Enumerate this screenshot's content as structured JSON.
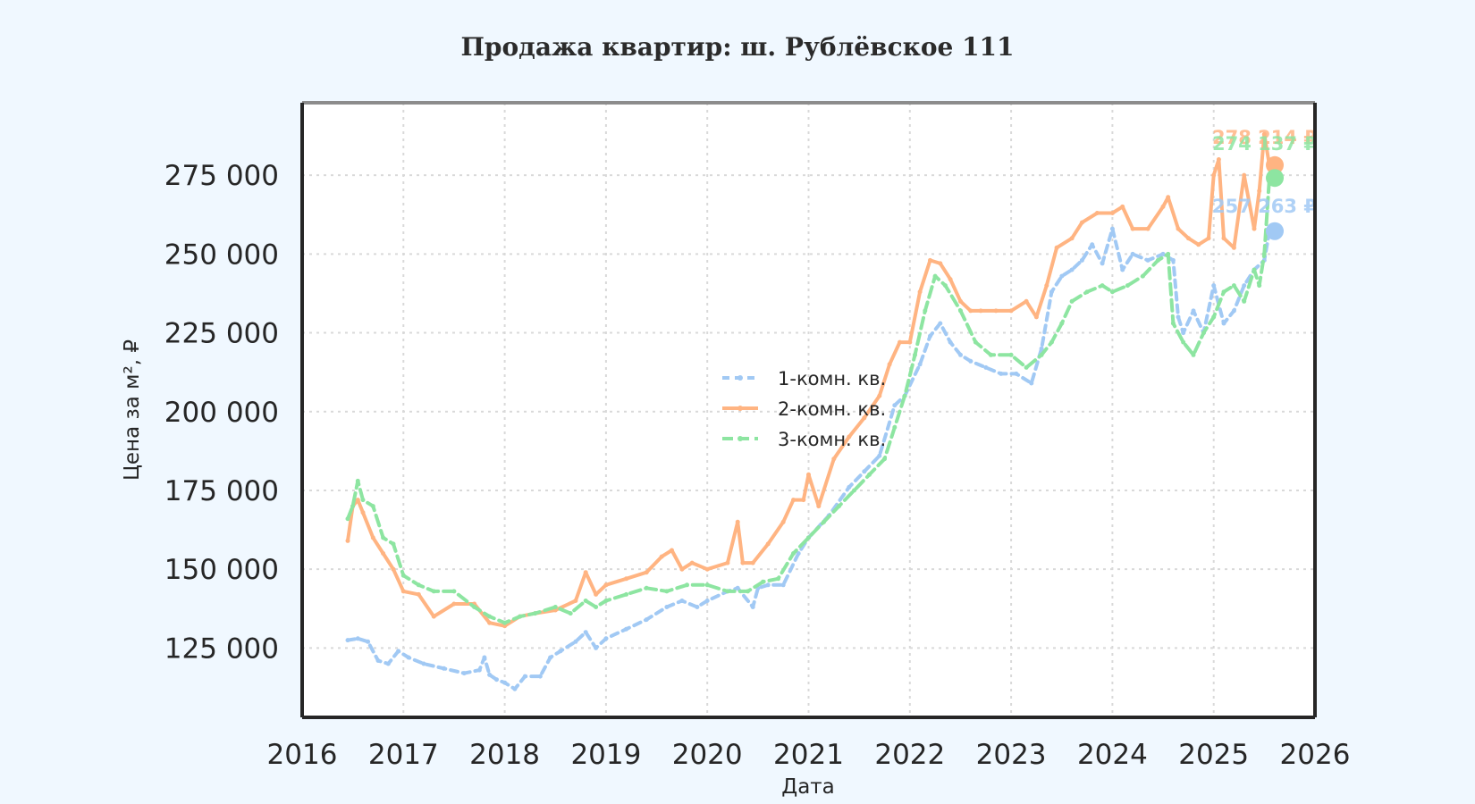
{
  "chart_data": {
    "type": "line",
    "title": "Продажа квартир: ш. Рублёвское 111",
    "xlabel": "Дата",
    "ylabel": "Цена за м², ₽",
    "xlim": [
      2016,
      2026
    ],
    "ylim": [
      103000,
      298000
    ],
    "x_ticks": [
      "2016",
      "2017",
      "2018",
      "2019",
      "2020",
      "2021",
      "2022",
      "2023",
      "2024",
      "2025",
      "2026"
    ],
    "y_ticks": [
      "125 000",
      "150 000",
      "175 000",
      "200 000",
      "225 000",
      "250 000",
      "275 000"
    ],
    "y_tick_values": [
      125000,
      150000,
      175000,
      200000,
      225000,
      250000,
      275000
    ],
    "grid": true,
    "legend_position": "center",
    "series": [
      {
        "name": "1-комн. кв.",
        "color": "#a1c9f4",
        "dash": "8 6",
        "x": [
          2016.45,
          2016.55,
          2016.65,
          2016.75,
          2016.85,
          2016.95,
          2017.05,
          2017.2,
          2017.4,
          2017.6,
          2017.75,
          2017.8,
          2017.85,
          2017.92,
          2018.0,
          2018.1,
          2018.2,
          2018.35,
          2018.45,
          2018.55,
          2018.7,
          2018.8,
          2018.9,
          2019.0,
          2019.2,
          2019.4,
          2019.6,
          2019.75,
          2019.9,
          2020.0,
          2020.2,
          2020.3,
          2020.45,
          2020.5,
          2020.6,
          2020.75,
          2020.9,
          2021.0,
          2021.2,
          2021.4,
          2021.55,
          2021.7,
          2021.85,
          2021.95,
          2022.1,
          2022.2,
          2022.3,
          2022.4,
          2022.5,
          2022.6,
          2022.75,
          2022.9,
          2023.05,
          2023.2,
          2023.3,
          2023.4,
          2023.5,
          2023.6,
          2023.7,
          2023.8,
          2023.9,
          2024.0,
          2024.1,
          2024.2,
          2024.35,
          2024.5,
          2024.6,
          2024.65,
          2024.7,
          2024.8,
          2024.9,
          2025.0,
          2025.1,
          2025.2,
          2025.3,
          2025.4,
          2025.5,
          2025.55
        ],
        "y": [
          127500,
          128000,
          127000,
          121000,
          120000,
          124000,
          122000,
          120000,
          118500,
          117000,
          118000,
          122000,
          116500,
          115000,
          114000,
          112000,
          116000,
          116000,
          122000,
          124000,
          127000,
          130000,
          125000,
          128000,
          131000,
          134000,
          138000,
          140000,
          138000,
          140000,
          143000,
          144000,
          138000,
          144000,
          145000,
          145000,
          155000,
          160000,
          167000,
          176000,
          181000,
          186000,
          202000,
          205000,
          215000,
          224000,
          228000,
          222000,
          218000,
          216000,
          214000,
          212000,
          212000,
          209000,
          220000,
          238000,
          243000,
          245000,
          248000,
          253000,
          247000,
          258000,
          245000,
          250000,
          248000,
          250000,
          248000,
          230000,
          225000,
          232000,
          225000,
          240000,
          228000,
          232000,
          240000,
          245000,
          248000,
          257263
        ]
      },
      {
        "name": "2-комн. кв.",
        "color": "#ffb482",
        "dash": "",
        "x": [
          2016.45,
          2016.5,
          2016.55,
          2016.6,
          2016.7,
          2016.8,
          2016.9,
          2017.0,
          2017.15,
          2017.3,
          2017.5,
          2017.7,
          2017.85,
          2018.0,
          2018.15,
          2018.3,
          2018.5,
          2018.7,
          2018.8,
          2018.9,
          2019.0,
          2019.2,
          2019.4,
          2019.55,
          2019.65,
          2019.75,
          2019.85,
          2020.0,
          2020.2,
          2020.3,
          2020.35,
          2020.45,
          2020.6,
          2020.75,
          2020.85,
          2020.95,
          2021.0,
          2021.1,
          2021.25,
          2021.4,
          2021.55,
          2021.7,
          2021.8,
          2021.9,
          2022.0,
          2022.1,
          2022.2,
          2022.3,
          2022.4,
          2022.5,
          2022.6,
          2022.7,
          2022.85,
          2023.0,
          2023.15,
          2023.25,
          2023.35,
          2023.45,
          2023.6,
          2023.7,
          2023.85,
          2024.0,
          2024.1,
          2024.2,
          2024.35,
          2024.5,
          2024.55,
          2024.65,
          2024.75,
          2024.85,
          2024.95,
          2025.0,
          2025.05,
          2025.1,
          2025.2,
          2025.3,
          2025.4,
          2025.45,
          2025.5,
          2025.55
        ],
        "y": [
          159000,
          170000,
          172000,
          168000,
          160000,
          155000,
          150000,
          143000,
          142000,
          135000,
          139000,
          139000,
          133000,
          132000,
          135000,
          136000,
          137000,
          140000,
          149000,
          142000,
          145000,
          147000,
          149000,
          154000,
          156000,
          150000,
          152000,
          150000,
          152000,
          165000,
          152000,
          152000,
          158000,
          165000,
          172000,
          172000,
          180000,
          170000,
          185000,
          192000,
          198000,
          205000,
          215000,
          222000,
          222000,
          238000,
          248000,
          247000,
          242000,
          235000,
          232000,
          232000,
          232000,
          232000,
          235000,
          230000,
          240000,
          252000,
          255000,
          260000,
          263000,
          263000,
          265000,
          258000,
          258000,
          265000,
          268000,
          258000,
          255000,
          253000,
          255000,
          275000,
          280000,
          255000,
          252000,
          275000,
          258000,
          270000,
          288000,
          278214
        ]
      },
      {
        "name": "3-комн. кв.",
        "color": "#8de5a1",
        "dash": "12 6",
        "x": [
          2016.45,
          2016.5,
          2016.55,
          2016.6,
          2016.7,
          2016.8,
          2016.9,
          2017.0,
          2017.15,
          2017.3,
          2017.5,
          2017.7,
          2017.85,
          2018.0,
          2018.15,
          2018.3,
          2018.5,
          2018.65,
          2018.8,
          2018.9,
          2019.0,
          2019.2,
          2019.4,
          2019.6,
          2019.8,
          2020.0,
          2020.2,
          2020.4,
          2020.55,
          2020.7,
          2020.85,
          2021.0,
          2021.15,
          2021.3,
          2021.45,
          2021.6,
          2021.75,
          2021.85,
          2021.95,
          2022.05,
          2022.15,
          2022.25,
          2022.35,
          2022.5,
          2022.65,
          2022.8,
          2023.0,
          2023.15,
          2023.3,
          2023.4,
          2023.5,
          2023.6,
          2023.75,
          2023.9,
          2024.0,
          2024.15,
          2024.3,
          2024.45,
          2024.55,
          2024.6,
          2024.7,
          2024.8,
          2024.9,
          2025.0,
          2025.1,
          2025.2,
          2025.3,
          2025.4,
          2025.45,
          2025.5,
          2025.55
        ],
        "y": [
          166000,
          170000,
          178000,
          172000,
          170000,
          160000,
          158000,
          148000,
          145000,
          143000,
          143000,
          138000,
          135000,
          133000,
          135000,
          136000,
          138000,
          136000,
          140000,
          138000,
          140000,
          142000,
          144000,
          143000,
          145000,
          145000,
          143000,
          143000,
          146000,
          147000,
          155000,
          160000,
          165000,
          170000,
          175000,
          180000,
          185000,
          195000,
          205000,
          218000,
          232000,
          243000,
          240000,
          232000,
          222000,
          218000,
          218000,
          214000,
          218000,
          222000,
          228000,
          235000,
          238000,
          240000,
          238000,
          240000,
          243000,
          248000,
          250000,
          228000,
          222000,
          218000,
          225000,
          230000,
          238000,
          240000,
          235000,
          245000,
          240000,
          250000,
          274137
        ]
      }
    ],
    "end_labels": [
      {
        "series": 0,
        "value": 257263,
        "text": "257 263 ₽"
      },
      {
        "series": 1,
        "value": 278214,
        "text": "278 214 ₽"
      },
      {
        "series": 2,
        "value": 274137,
        "text": "274 137 ₽"
      }
    ]
  }
}
